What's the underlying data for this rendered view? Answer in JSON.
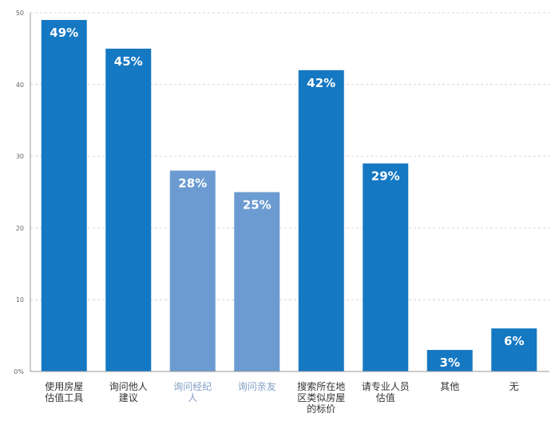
{
  "chart_data": {
    "type": "bar",
    "categories": [
      [
        "使用房屋",
        "估值工具"
      ],
      [
        "询问他人",
        "建议"
      ],
      [
        "询问经纪",
        "人"
      ],
      [
        "询问亲友"
      ],
      [
        "搜索所在地",
        "区类似房屋",
        "的标价"
      ],
      [
        "请专业人员",
        "估值"
      ],
      [
        "其他"
      ],
      [
        "无"
      ]
    ],
    "values": [
      49,
      45,
      28,
      25,
      42,
      29,
      3,
      6
    ],
    "value_labels": [
      "49%",
      "45%",
      "28%",
      "25%",
      "42%",
      "29%",
      "3%",
      "6%"
    ],
    "highlighted": [
      true,
      true,
      false,
      false,
      true,
      true,
      true,
      true
    ],
    "y_ticks": [
      "0%",
      "10",
      "20",
      "30",
      "40",
      "50"
    ],
    "y_tick_values": [
      0,
      10,
      20,
      30,
      40,
      50
    ],
    "ylim": [
      0,
      50
    ],
    "grid": true,
    "colors": {
      "bar": "#1578c2",
      "bar_muted": "#6b9bd1",
      "label_dark": "#333333",
      "label_muted": "#7f9fc6",
      "grid": "#cccccc"
    }
  }
}
